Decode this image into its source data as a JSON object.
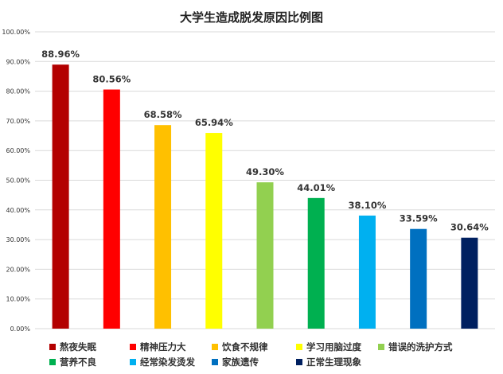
{
  "chart_data": {
    "type": "bar",
    "title": "大学生造成脱发原因比例图",
    "categories": [
      "熬夜失眠",
      "精神压力大",
      "饮食不规律",
      "学习用脑过度",
      "错误的洗护方式",
      "营养不良",
      "经常染发烫发",
      "家族遗传",
      "正常生理现象"
    ],
    "values": [
      88.96,
      80.56,
      68.58,
      65.94,
      49.3,
      44.01,
      38.1,
      33.59,
      30.64
    ],
    "data_labels": [
      "88.96%",
      "80.56%",
      "68.58%",
      "65.94%",
      "49.30%",
      "44.01%",
      "38.10%",
      "33.59%",
      "30.64%"
    ],
    "colors": [
      "#b30000",
      "#ff0000",
      "#ffc000",
      "#ffff00",
      "#92d050",
      "#00b050",
      "#00b0f0",
      "#0070c0",
      "#002060"
    ],
    "ylim": [
      0,
      100
    ],
    "yticks": [
      0,
      10,
      20,
      30,
      40,
      50,
      60,
      70,
      80,
      90,
      100
    ],
    "ytick_labels": [
      "0.00%",
      "10.00%",
      "20.00%",
      "30.00%",
      "40.00%",
      "50.00%",
      "60.00%",
      "70.00%",
      "80.00%",
      "90.00%",
      "100.00%"
    ],
    "xlabel": "",
    "ylabel": "",
    "grid": true,
    "legend": "bottom"
  }
}
